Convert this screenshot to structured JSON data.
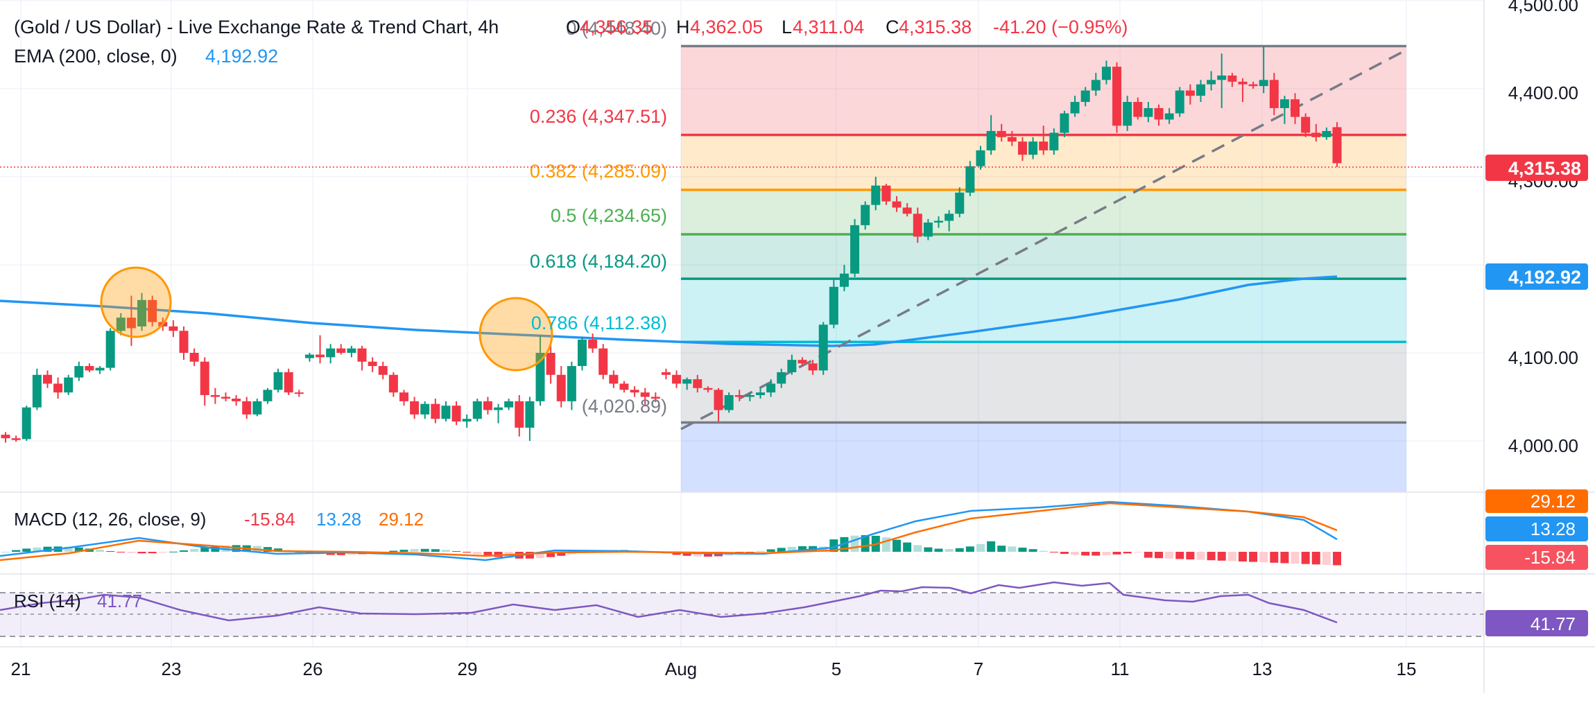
{
  "header": {
    "title": "(Gold / US Dollar) - Live Exchange Rate & Trend Chart, 4h",
    "o_label": "O",
    "o_value": "4,356.35",
    "h_label": "H",
    "h_value": "4,362.05",
    "l_label": "L",
    "l_value": "4,311.04",
    "c_label": "C",
    "c_value": "4,315.38",
    "change": "-41.20 (−0.95%)",
    "ema_label": "EMA (200, close, 0)",
    "ema_value": "4,192.92"
  },
  "price_axis": {
    "ticks": [
      "4,500.00",
      "4,400.00",
      "4,300.00",
      "4,100.00",
      "4,000.00"
    ],
    "last_price": "4,315.38",
    "ema_price": "4,192.92"
  },
  "time_axis": {
    "ticks": [
      "21",
      "23",
      "26",
      "29",
      "Aug",
      "5",
      "7",
      "11",
      "13",
      "15"
    ]
  },
  "fibonacci": {
    "levels": [
      {
        "label": "0 (4,448.40)",
        "price": 4448.4,
        "color": "#787b86"
      },
      {
        "label": "0.236 (4,347.51)",
        "price": 4347.51,
        "color": "#f23645"
      },
      {
        "label": "0.382 (4,285.09)",
        "price": 4285.09,
        "color": "#ff9800"
      },
      {
        "label": "0.5 (4,234.65)",
        "price": 4234.65,
        "color": "#4caf50"
      },
      {
        "label": "0.618 (4,184.20)",
        "price": 4184.2,
        "color": "#089981"
      },
      {
        "label": "0.786 (4,112.38)",
        "price": 4112.38,
        "color": "#00bcd4"
      },
      {
        "label": "(4,020.89)",
        "price": 4020.89,
        "color": "#787b86"
      }
    ]
  },
  "macd": {
    "label": "MACD (12, 26, close, 9)",
    "histogram": "-15.84",
    "macd": "13.28",
    "signal": "29.12"
  },
  "rsi": {
    "label": "RSI (14)",
    "value": "41.77"
  },
  "colors": {
    "up": "#089981",
    "down": "#f23645",
    "ema": "#2196f3",
    "macd_line": "#2196f3",
    "signal_line": "#ff6d00",
    "rsi_line": "#7e57c2",
    "highlight": "#ff9800"
  },
  "chart_data": {
    "type": "candlestick",
    "timeframe": "4h",
    "ylim": [
      3970,
      4500
    ],
    "x": [
      "21",
      "23",
      "26",
      "29",
      "Aug",
      "5",
      "7",
      "11",
      "13",
      "15"
    ],
    "candles_ohlc": [
      [
        4007,
        4010,
        3998,
        4003
      ],
      [
        4003,
        4006,
        3999,
        4001
      ],
      [
        4002,
        4040,
        4000,
        4038
      ],
      [
        4038,
        4082,
        4035,
        4075
      ],
      [
        4075,
        4080,
        4060,
        4065
      ],
      [
        4065,
        4072,
        4048,
        4055
      ],
      [
        4055,
        4075,
        4052,
        4072
      ],
      [
        4072,
        4090,
        4068,
        4085
      ],
      [
        4085,
        4088,
        4078,
        4080
      ],
      [
        4080,
        4085,
        4076,
        4083
      ],
      [
        4083,
        4128,
        4080,
        4125
      ],
      [
        4125,
        4145,
        4120,
        4140
      ],
      [
        4140,
        4165,
        4108,
        4128
      ],
      [
        4130,
        4168,
        4125,
        4160
      ],
      [
        4160,
        4165,
        4130,
        4135
      ],
      [
        4135,
        4140,
        4125,
        4130
      ],
      [
        4130,
        4137,
        4118,
        4125
      ],
      [
        4125,
        4130,
        4092,
        4100
      ],
      [
        4100,
        4105,
        4085,
        4090
      ],
      [
        4090,
        4095,
        4040,
        4052
      ],
      [
        4052,
        4060,
        4042,
        4050
      ],
      [
        4050,
        4055,
        4045,
        4048
      ],
      [
        4048,
        4052,
        4040,
        4045
      ],
      [
        4045,
        4050,
        4025,
        4030
      ],
      [
        4030,
        4048,
        4028,
        4045
      ],
      [
        4045,
        4060,
        4042,
        4058
      ],
      [
        4058,
        4082,
        4055,
        4078
      ],
      [
        4078,
        4082,
        4052,
        4055
      ],
      [
        4055,
        4058,
        4050,
        4054
      ],
      [
        4094,
        4100,
        4090,
        4098
      ],
      [
        4098,
        4120,
        4088,
        4095
      ],
      [
        4095,
        4110,
        4088,
        4105
      ],
      [
        4105,
        4110,
        4098,
        4100
      ],
      [
        4100,
        4108,
        4095,
        4105
      ],
      [
        4105,
        4108,
        4080,
        4090
      ],
      [
        4090,
        4095,
        4078,
        4085
      ],
      [
        4085,
        4090,
        4070,
        4075
      ],
      [
        4075,
        4078,
        4050,
        4055
      ],
      [
        4055,
        4058,
        4040,
        4045
      ],
      [
        4045,
        4050,
        4025,
        4030
      ],
      [
        4030,
        4045,
        4025,
        4042
      ],
      [
        4042,
        4048,
        4020,
        4025
      ],
      [
        4025,
        4045,
        4022,
        4040
      ],
      [
        4040,
        4045,
        4018,
        4022
      ],
      [
        4022,
        4030,
        4015,
        4025
      ],
      [
        4025,
        4048,
        4022,
        4045
      ],
      [
        4045,
        4050,
        4030,
        4035
      ],
      [
        4035,
        4042,
        4020,
        4038
      ],
      [
        4038,
        4048,
        4035,
        4045
      ],
      [
        4045,
        4052,
        4005,
        4015
      ],
      [
        4015,
        4050,
        4000,
        4045
      ],
      [
        4045,
        4120,
        4040,
        4100
      ],
      [
        4100,
        4108,
        4065,
        4075
      ],
      [
        4075,
        4085,
        4038,
        4045
      ],
      [
        4045,
        4090,
        4035,
        4085
      ],
      [
        4085,
        4118,
        4080,
        4115
      ],
      [
        4115,
        4122,
        4100,
        4105
      ],
      [
        4105,
        4110,
        4070,
        4075
      ],
      [
        4075,
        4080,
        4060,
        4065
      ],
      [
        4065,
        4068,
        4055,
        4058
      ],
      [
        4058,
        4062,
        4050,
        4055
      ],
      [
        4055,
        4060,
        4040,
        4050
      ],
      [
        4050,
        4055,
        4044,
        4048
      ],
      [
        4078,
        4082,
        4070,
        4075
      ],
      [
        4075,
        4080,
        4060,
        4065
      ],
      [
        4065,
        4072,
        4058,
        4070
      ],
      [
        4070,
        4075,
        4055,
        4060
      ],
      [
        4060,
        4062,
        4055,
        4058
      ],
      [
        4058,
        4060,
        4022,
        4035
      ],
      [
        4035,
        4055,
        4032,
        4052
      ],
      [
        4052,
        4058,
        4045,
        4050
      ],
      [
        4050,
        4055,
        4045,
        4052
      ],
      [
        4052,
        4060,
        4048,
        4055
      ],
      [
        4055,
        4070,
        4050,
        4065
      ],
      [
        4065,
        4082,
        4060,
        4078
      ],
      [
        4078,
        4098,
        4075,
        4092
      ],
      [
        4092,
        4095,
        4085,
        4088
      ],
      [
        4088,
        4092,
        4075,
        4080
      ],
      [
        4080,
        4135,
        4075,
        4132
      ],
      [
        4132,
        4185,
        4128,
        4175
      ],
      [
        4175,
        4200,
        4170,
        4190
      ],
      [
        4190,
        4252,
        4186,
        4245
      ],
      [
        4245,
        4272,
        4240,
        4268
      ],
      [
        4268,
        4300,
        4262,
        4290
      ],
      [
        4290,
        4292,
        4268,
        4272
      ],
      [
        4272,
        4278,
        4260,
        4265
      ],
      [
        4265,
        4270,
        4255,
        4258
      ],
      [
        4258,
        4265,
        4225,
        4232
      ],
      [
        4232,
        4252,
        4228,
        4248
      ],
      [
        4248,
        4255,
        4242,
        4250
      ],
      [
        4250,
        4262,
        4238,
        4258
      ],
      [
        4258,
        4288,
        4254,
        4282
      ],
      [
        4282,
        4318,
        4278,
        4312
      ],
      [
        4312,
        4335,
        4308,
        4330
      ],
      [
        4330,
        4370,
        4325,
        4352
      ],
      [
        4352,
        4360,
        4340,
        4345
      ],
      [
        4345,
        4352,
        4335,
        4340
      ],
      [
        4340,
        4345,
        4318,
        4325
      ],
      [
        4325,
        4345,
        4320,
        4340
      ],
      [
        4340,
        4358,
        4325,
        4330
      ],
      [
        4330,
        4355,
        4325,
        4350
      ],
      [
        4350,
        4375,
        4345,
        4372
      ],
      [
        4372,
        4392,
        4368,
        4385
      ],
      [
        4385,
        4402,
        4380,
        4398
      ],
      [
        4398,
        4418,
        4392,
        4410
      ],
      [
        4410,
        4432,
        4405,
        4425
      ],
      [
        4425,
        4430,
        4350,
        4358
      ],
      [
        4358,
        4392,
        4352,
        4385
      ],
      [
        4385,
        4390,
        4365,
        4368
      ],
      [
        4368,
        4385,
        4362,
        4378
      ],
      [
        4378,
        4382,
        4358,
        4365
      ],
      [
        4365,
        4378,
        4360,
        4372
      ],
      [
        4372,
        4402,
        4368,
        4398
      ],
      [
        4398,
        4405,
        4382,
        4392
      ],
      [
        4392,
        4410,
        4385,
        4405
      ],
      [
        4405,
        4420,
        4398,
        4410
      ],
      [
        4410,
        4440,
        4378,
        4415
      ],
      [
        4415,
        4418,
        4402,
        4408
      ],
      [
        4408,
        4412,
        4385,
        4405
      ],
      [
        4405,
        4408,
        4400,
        4403
      ],
      [
        4403,
        4448,
        4395,
        4410
      ],
      [
        4410,
        4418,
        4370,
        4378
      ],
      [
        4378,
        4392,
        4360,
        4388
      ],
      [
        4388,
        4395,
        4360,
        4368
      ],
      [
        4368,
        4372,
        4345,
        4350
      ],
      [
        4350,
        4360,
        4340,
        4345
      ],
      [
        4345,
        4356,
        4342,
        4352
      ],
      [
        4356.35,
        4362.05,
        4311.04,
        4315.38
      ]
    ],
    "ema_200": "4,192.92",
    "fib_retracement": {
      "high": 4448.4,
      "low": 4020.89
    }
  }
}
